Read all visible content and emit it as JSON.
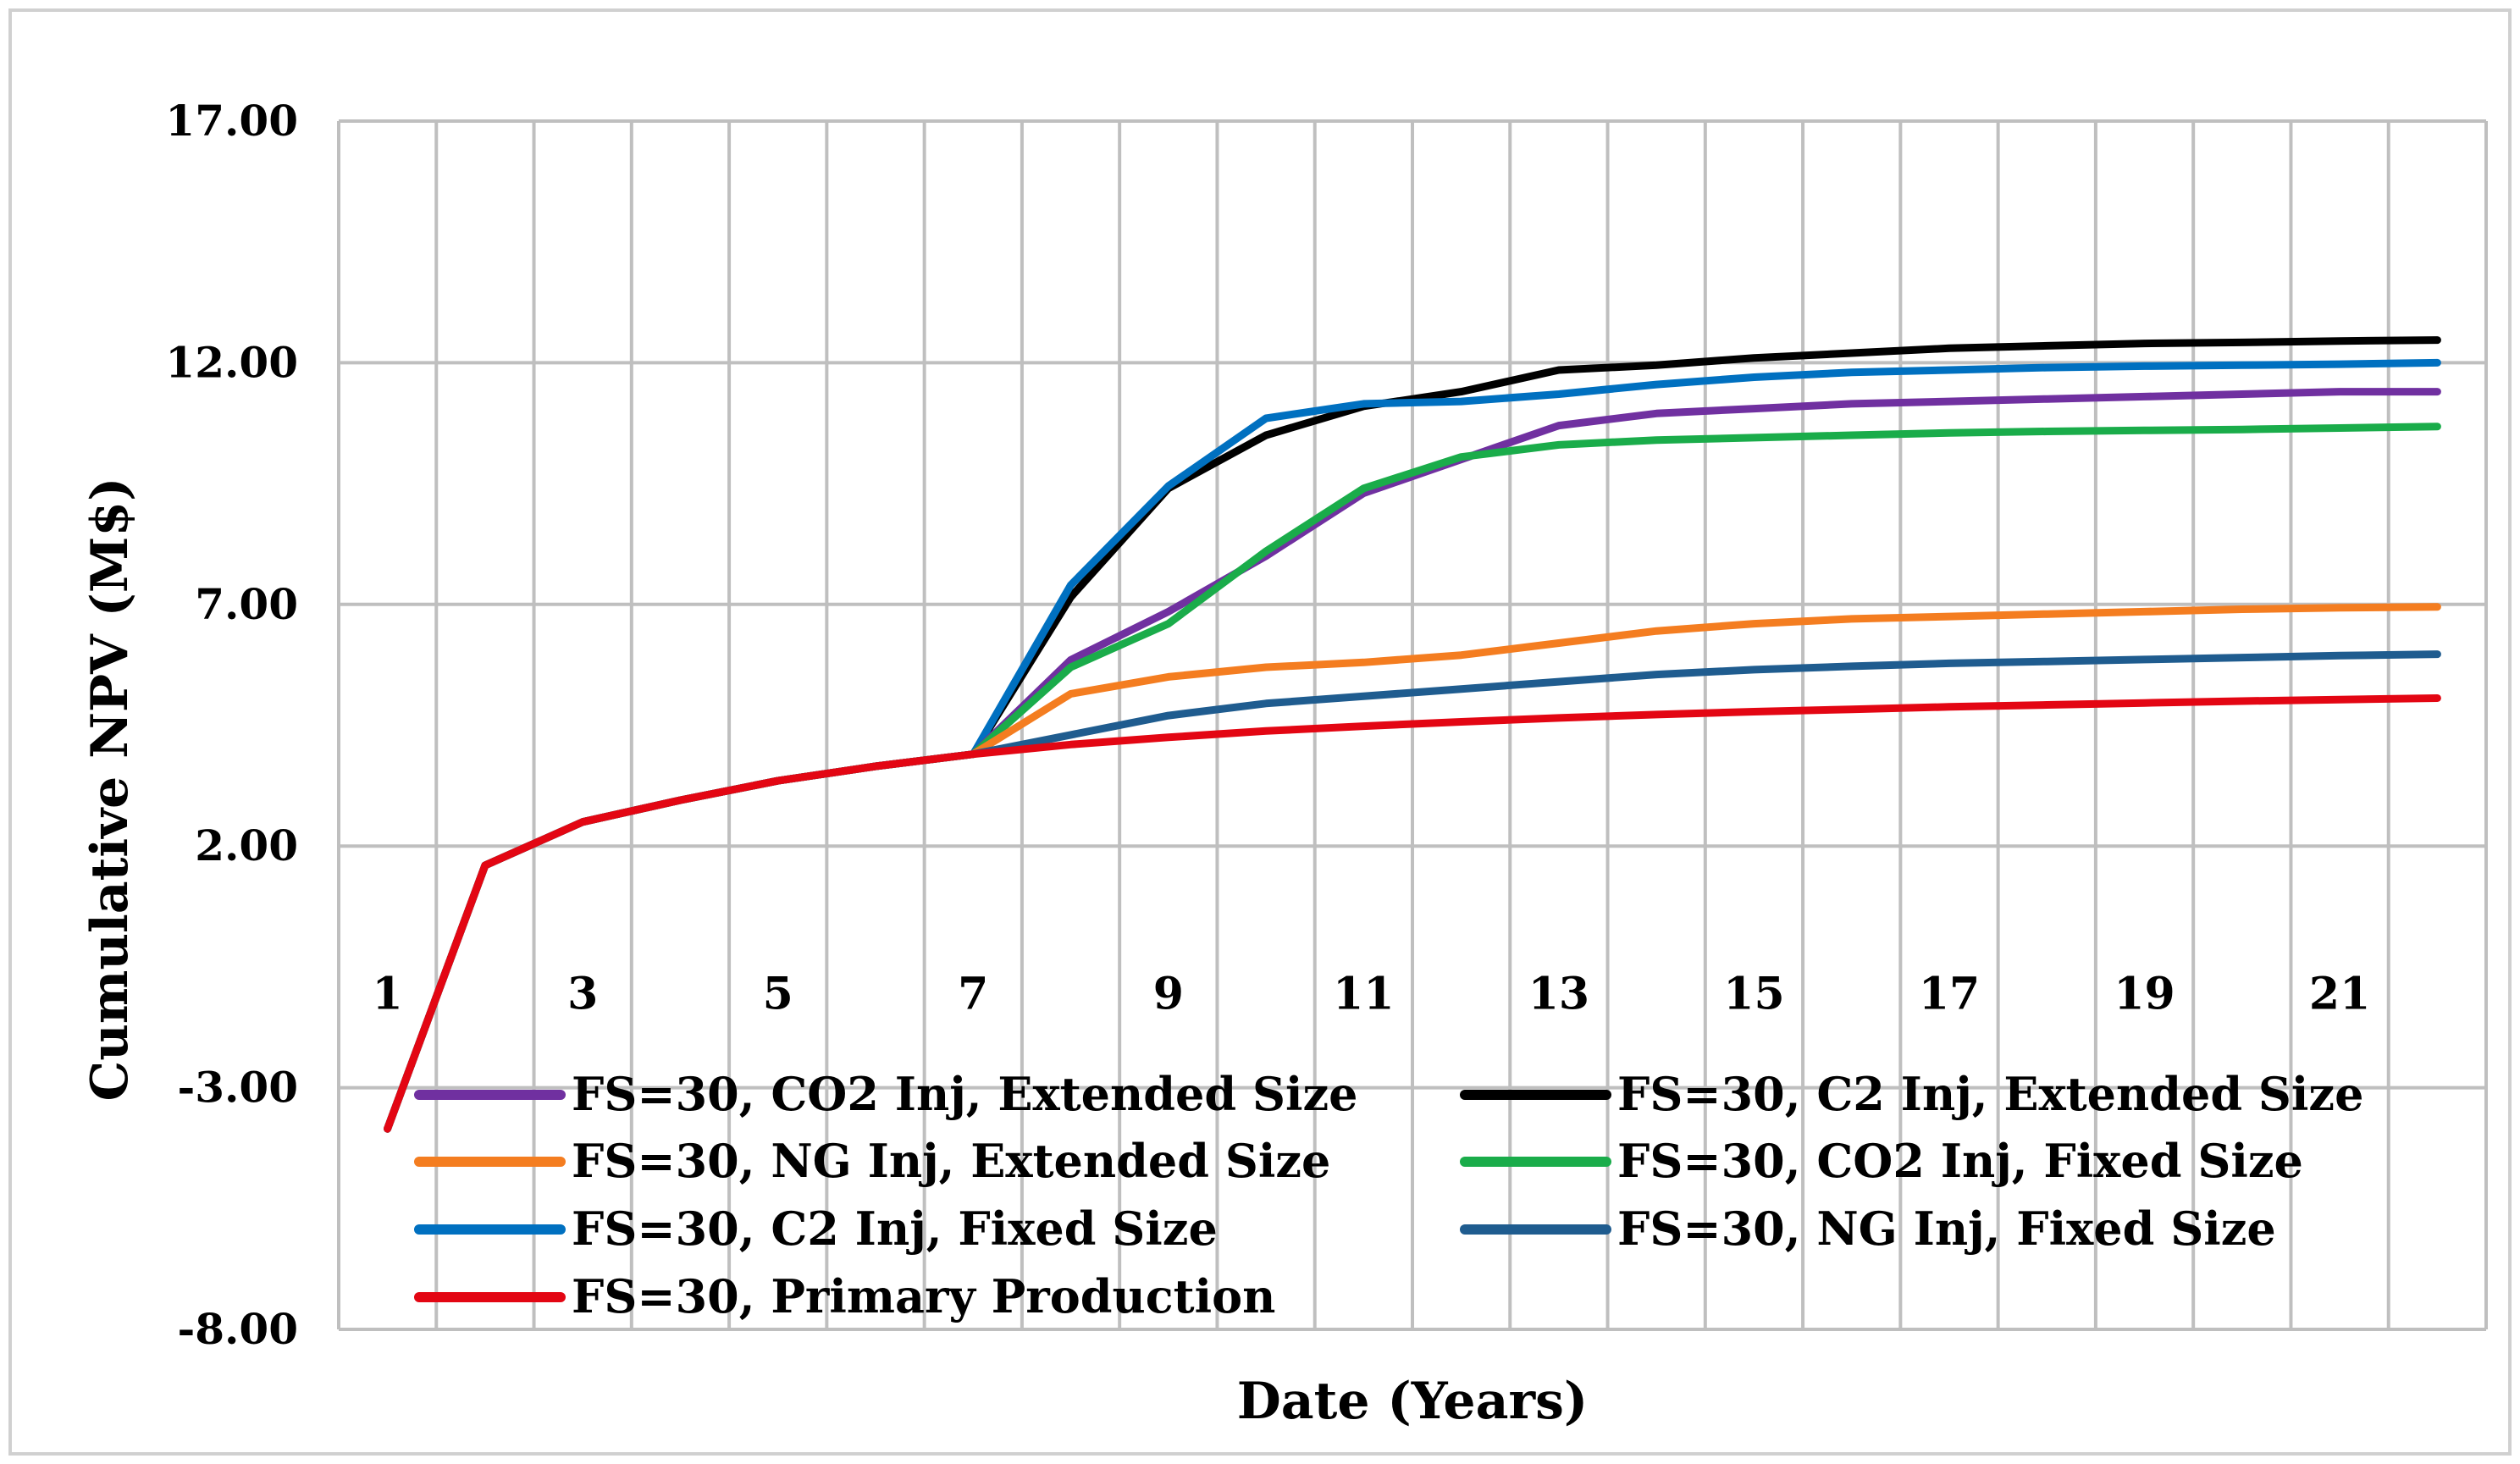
{
  "chart_data": {
    "type": "line",
    "title": "",
    "xlabel": "Date (Years)",
    "ylabel": "Cumulative NPV (M$)",
    "ylim": [
      -8,
      17
    ],
    "y_ticks": [
      -8,
      -3,
      2,
      7,
      12,
      17
    ],
    "y_tick_labels": [
      "-8.00",
      "-3.00",
      "2.00",
      "7.00",
      "12.00",
      "17.00"
    ],
    "x_ticks": [
      1,
      3,
      5,
      7,
      9,
      11,
      13,
      15,
      17,
      19,
      21
    ],
    "x_tick_labels": [
      "1",
      "3",
      "5",
      "7",
      "9",
      "11",
      "13",
      "15",
      "17",
      "19",
      "21"
    ],
    "x": [
      1,
      2,
      3,
      4,
      5,
      6,
      7,
      8,
      9,
      10,
      11,
      12,
      13,
      14,
      15,
      16,
      17,
      18,
      19,
      20,
      21,
      22
    ],
    "grid": true,
    "legend_position": "bottom-inside",
    "series": [
      {
        "name": "FS=30, CO2 Inj, Extended Size",
        "color": "#7030a0",
        "values": [
          -3.85,
          1.6,
          2.5,
          2.95,
          3.35,
          3.65,
          3.9,
          5.85,
          6.85,
          8.0,
          9.3,
          10.0,
          10.7,
          10.95,
          11.05,
          11.15,
          11.2,
          11.25,
          11.3,
          11.35,
          11.4,
          11.4
        ]
      },
      {
        "name": "FS=30, C2 Inj, Extended Size",
        "color": "#000000",
        "values": [
          -3.85,
          1.6,
          2.5,
          2.95,
          3.35,
          3.65,
          3.9,
          7.15,
          9.4,
          10.5,
          11.1,
          11.4,
          11.85,
          11.95,
          12.1,
          12.2,
          12.3,
          12.35,
          12.4,
          12.42,
          12.45,
          12.47
        ]
      },
      {
        "name": "FS=30, NG Inj, Extended Size",
        "color": "#f47d20",
        "values": [
          -3.85,
          1.6,
          2.5,
          2.95,
          3.35,
          3.65,
          3.9,
          5.15,
          5.5,
          5.7,
          5.8,
          5.95,
          6.2,
          6.45,
          6.6,
          6.7,
          6.75,
          6.8,
          6.85,
          6.9,
          6.93,
          6.95
        ]
      },
      {
        "name": "FS=30, CO2 Inj, Fixed Size",
        "color": "#1aac4a",
        "values": [
          -3.85,
          1.6,
          2.5,
          2.95,
          3.35,
          3.65,
          3.9,
          5.7,
          6.6,
          8.1,
          9.4,
          10.05,
          10.3,
          10.4,
          10.45,
          10.5,
          10.55,
          10.58,
          10.6,
          10.62,
          10.65,
          10.68
        ]
      },
      {
        "name": "FS=30, C2 Inj, Fixed Size",
        "color": "#0070c0",
        "values": [
          -3.85,
          1.6,
          2.5,
          2.95,
          3.35,
          3.65,
          3.9,
          7.4,
          9.45,
          10.85,
          11.15,
          11.2,
          11.35,
          11.55,
          11.7,
          11.8,
          11.85,
          11.9,
          11.93,
          11.95,
          11.97,
          12.0
        ]
      },
      {
        "name": "FS=30, NG Inj, Fixed Size",
        "color": "#1f5c8f",
        "values": [
          -3.85,
          1.6,
          2.5,
          2.95,
          3.35,
          3.65,
          3.9,
          4.3,
          4.7,
          4.95,
          5.1,
          5.25,
          5.4,
          5.55,
          5.65,
          5.72,
          5.78,
          5.82,
          5.86,
          5.9,
          5.94,
          5.97
        ]
      },
      {
        "name": "FS=30, Primary Production",
        "color": "#e30613",
        "values": [
          -3.85,
          1.6,
          2.5,
          2.95,
          3.35,
          3.65,
          3.9,
          4.1,
          4.25,
          4.38,
          4.48,
          4.57,
          4.65,
          4.72,
          4.78,
          4.83,
          4.88,
          4.92,
          4.96,
          5.0,
          5.03,
          5.06
        ]
      }
    ]
  }
}
